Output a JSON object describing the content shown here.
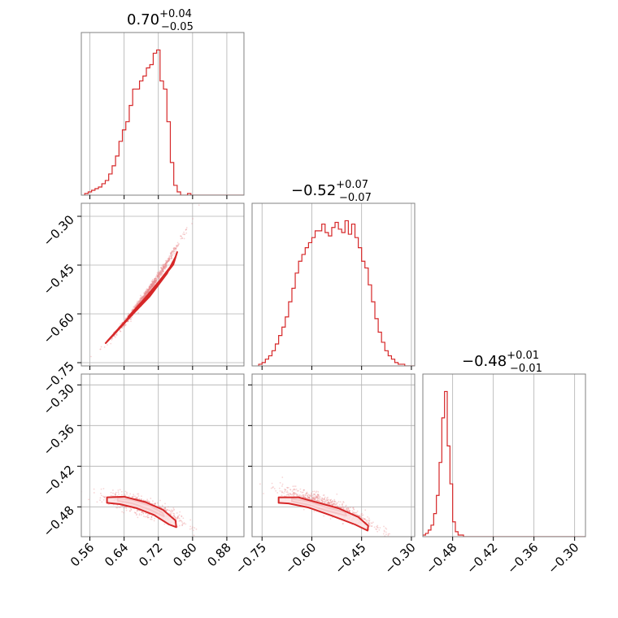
{
  "chart_data": [
    {
      "type": "histogram",
      "panel": "row1-col1",
      "title": {
        "median": "0.70",
        "plus": "+0.04",
        "minus": "−0.05"
      },
      "bin_edges": [
        0.548,
        0.556,
        0.564,
        0.572,
        0.58,
        0.588,
        0.596,
        0.604,
        0.612,
        0.62,
        0.628,
        0.636,
        0.644,
        0.652,
        0.66,
        0.668,
        0.676,
        0.684,
        0.692,
        0.7,
        0.708,
        0.716,
        0.724,
        0.732,
        0.74,
        0.748,
        0.756,
        0.764,
        0.772,
        0.78,
        0.788,
        0.796,
        0.804,
        0.812,
        0.82,
        0.828,
        0.836,
        0.844,
        0.852,
        0.86,
        0.868,
        0.876,
        0.884,
        0.892,
        0.9,
        0.908
      ],
      "counts": [
        1,
        2,
        3,
        4,
        5,
        7,
        9,
        13,
        18,
        24,
        33,
        40,
        45,
        55,
        65,
        65,
        70,
        73,
        78,
        80,
        87,
        89,
        70,
        65,
        45,
        20,
        6,
        2,
        0,
        0,
        1,
        0,
        0,
        0,
        0,
        0,
        0,
        0,
        0,
        0,
        0,
        0,
        0,
        0,
        0
      ],
      "xlim": [
        0.54,
        0.92
      ],
      "grid": true
    },
    {
      "type": "histogram",
      "panel": "row2-col2",
      "title": {
        "median": "−0.52",
        "plus": "+0.07",
        "minus": "−0.07"
      },
      "bin_edges": [
        -0.76,
        -0.75,
        -0.74,
        -0.73,
        -0.72,
        -0.71,
        -0.7,
        -0.69,
        -0.68,
        -0.67,
        -0.66,
        -0.65,
        -0.64,
        -0.63,
        -0.62,
        -0.61,
        -0.6,
        -0.59,
        -0.58,
        -0.57,
        -0.56,
        -0.55,
        -0.54,
        -0.53,
        -0.52,
        -0.51,
        -0.5,
        -0.49,
        -0.48,
        -0.47,
        -0.46,
        -0.45,
        -0.44,
        -0.43,
        -0.42,
        -0.41,
        -0.4,
        -0.39,
        -0.38,
        -0.37,
        -0.36,
        -0.35,
        -0.34,
        -0.33,
        -0.32,
        -0.31,
        -0.3,
        -0.29
      ],
      "counts": [
        1,
        2,
        4,
        6,
        9,
        13,
        18,
        23,
        29,
        38,
        46,
        55,
        62,
        66,
        70,
        73,
        76,
        80,
        80,
        84,
        79,
        77,
        82,
        85,
        81,
        79,
        86,
        78,
        84,
        76,
        70,
        62,
        58,
        48,
        38,
        28,
        20,
        14,
        9,
        6,
        4,
        2,
        1,
        1,
        0,
        0,
        0
      ],
      "xlim": [
        -0.78,
        -0.29
      ],
      "grid": true
    },
    {
      "type": "histogram",
      "panel": "row3-col3",
      "title": {
        "median": "−0.48",
        "plus": "+0.01",
        "minus": "−0.01"
      },
      "bin_edges": [
        -0.524,
        -0.52,
        -0.516,
        -0.512,
        -0.508,
        -0.504,
        -0.5,
        -0.496,
        -0.492,
        -0.488,
        -0.484,
        -0.48,
        -0.476,
        -0.472,
        -0.468,
        -0.464,
        -0.46,
        -0.456,
        -0.452,
        -0.448,
        -0.444
      ],
      "counts": [
        1,
        2,
        4,
        7,
        14,
        25,
        45,
        72,
        88,
        55,
        32,
        9,
        3,
        1,
        1,
        0,
        0,
        0,
        0,
        0
      ],
      "xlim": [
        -0.524,
        -0.284
      ],
      "grid": true
    },
    {
      "type": "scatter-contour",
      "panel": "row2-col1",
      "x_range": [
        0.54,
        0.92
      ],
      "y_range": [
        -0.76,
        -0.26
      ],
      "relation": {
        "slope": 1.91,
        "intercept": -1.86,
        "curvature": 2.5,
        "center_x": 0.7
      },
      "contours": [
        {
          "level": "inner",
          "points": [
            [
              0.65,
              -0.609
            ],
            [
              0.69,
              -0.55
            ],
            [
              0.72,
              -0.503
            ],
            [
              0.75,
              -0.452
            ],
            [
              0.754,
              -0.44
            ],
            [
              0.748,
              -0.456
            ],
            [
              0.718,
              -0.51
            ],
            [
              0.688,
              -0.557
            ],
            [
              0.648,
              -0.615
            ]
          ]
        },
        {
          "level": "outer",
          "points": [
            [
              0.602,
              -0.682
            ],
            [
              0.64,
              -0.626
            ],
            [
              0.68,
              -0.569
            ],
            [
              0.72,
              -0.507
            ],
            [
              0.755,
              -0.448
            ],
            [
              0.764,
              -0.41
            ],
            [
              0.76,
              -0.425
            ],
            [
              0.74,
              -0.476
            ],
            [
              0.7,
              -0.546
            ],
            [
              0.66,
              -0.601
            ],
            [
              0.62,
              -0.658
            ],
            [
              0.597,
              -0.69
            ]
          ]
        }
      ],
      "xticks": [
        0.56,
        0.64,
        0.72,
        0.8,
        0.88
      ],
      "yticks": [
        -0.3,
        -0.45,
        -0.6,
        -0.75
      ],
      "ytick_labels": [
        "−0.30",
        "−0.45",
        "−0.60",
        "−0.75"
      ],
      "grid": true
    },
    {
      "type": "scatter-contour",
      "panel": "row3-col1",
      "x_range": [
        0.54,
        0.92
      ],
      "y_range": [
        -0.524,
        -0.284
      ],
      "relation": {
        "slope": -0.15,
        "intercept": -0.375,
        "curvature": -0.4,
        "center_x": 0.62
      },
      "contours": [
        {
          "level": "inner",
          "points": [
            [
              0.625,
              -0.467
            ],
            [
              0.66,
              -0.47
            ],
            [
              0.7,
              -0.478
            ],
            [
              0.73,
              -0.489
            ],
            [
              0.733,
              -0.494
            ],
            [
              0.7,
              -0.484
            ],
            [
              0.66,
              -0.475
            ],
            [
              0.625,
              -0.471
            ]
          ]
        },
        {
          "level": "outer",
          "points": [
            [
              0.6,
              -0.466
            ],
            [
              0.64,
              -0.465
            ],
            [
              0.69,
              -0.473
            ],
            [
              0.73,
              -0.484
            ],
            [
              0.76,
              -0.5
            ],
            [
              0.762,
              -0.51
            ],
            [
              0.745,
              -0.506
            ],
            [
              0.71,
              -0.492
            ],
            [
              0.67,
              -0.482
            ],
            [
              0.63,
              -0.476
            ],
            [
              0.6,
              -0.474
            ]
          ]
        }
      ],
      "yticks": [
        -0.3,
        -0.36,
        -0.42,
        -0.48
      ],
      "ytick_labels": [
        "−0.30",
        "−0.36",
        "−0.42",
        "−0.48"
      ],
      "grid": true
    },
    {
      "type": "scatter-contour",
      "panel": "row3-col2",
      "x_range": [
        -0.78,
        -0.29
      ],
      "y_range": [
        -0.524,
        -0.284
      ],
      "relation": {
        "slope": -0.13,
        "intercept": -0.547,
        "curvature": -0.25,
        "center_x": -0.65
      },
      "contours": [
        {
          "level": "inner",
          "points": [
            [
              -0.66,
              -0.468
            ],
            [
              -0.61,
              -0.472
            ],
            [
              -0.56,
              -0.48
            ],
            [
              -0.5,
              -0.488
            ],
            [
              -0.496,
              -0.493
            ],
            [
              -0.56,
              -0.485
            ],
            [
              -0.61,
              -0.477
            ],
            [
              -0.66,
              -0.472
            ]
          ]
        },
        {
          "level": "outer",
          "points": [
            [
              -0.7,
              -0.466
            ],
            [
              -0.64,
              -0.466
            ],
            [
              -0.58,
              -0.474
            ],
            [
              -0.52,
              -0.482
            ],
            [
              -0.46,
              -0.495
            ],
            [
              -0.43,
              -0.508
            ],
            [
              -0.432,
              -0.515
            ],
            [
              -0.47,
              -0.506
            ],
            [
              -0.54,
              -0.493
            ],
            [
              -0.61,
              -0.481
            ],
            [
              -0.67,
              -0.475
            ],
            [
              -0.7,
              -0.474
            ]
          ]
        }
      ],
      "grid": true
    }
  ],
  "axes": {
    "col1_xtick_labels": [
      "0.56",
      "0.64",
      "0.72",
      "0.80",
      "0.88"
    ],
    "col1_xticks": [
      0.56,
      0.64,
      0.72,
      0.8,
      0.88
    ],
    "col2_xtick_labels": [
      "−0.75",
      "−0.60",
      "−0.45",
      "−0.30"
    ],
    "col2_xticks": [
      -0.75,
      -0.6,
      -0.45,
      -0.3
    ],
    "col3_xtick_labels": [
      "−0.48",
      "−0.42",
      "−0.36",
      "−0.30"
    ],
    "col3_xticks": [
      -0.48,
      -0.42,
      -0.36,
      -0.3
    ]
  },
  "colors": {
    "line": "#d62728",
    "fill_inner": "#f3b6b8",
    "fill_outer": "#fbe2e3",
    "points": "#e88a8c",
    "grid": "#b0b0b0",
    "frame": "#808080"
  }
}
